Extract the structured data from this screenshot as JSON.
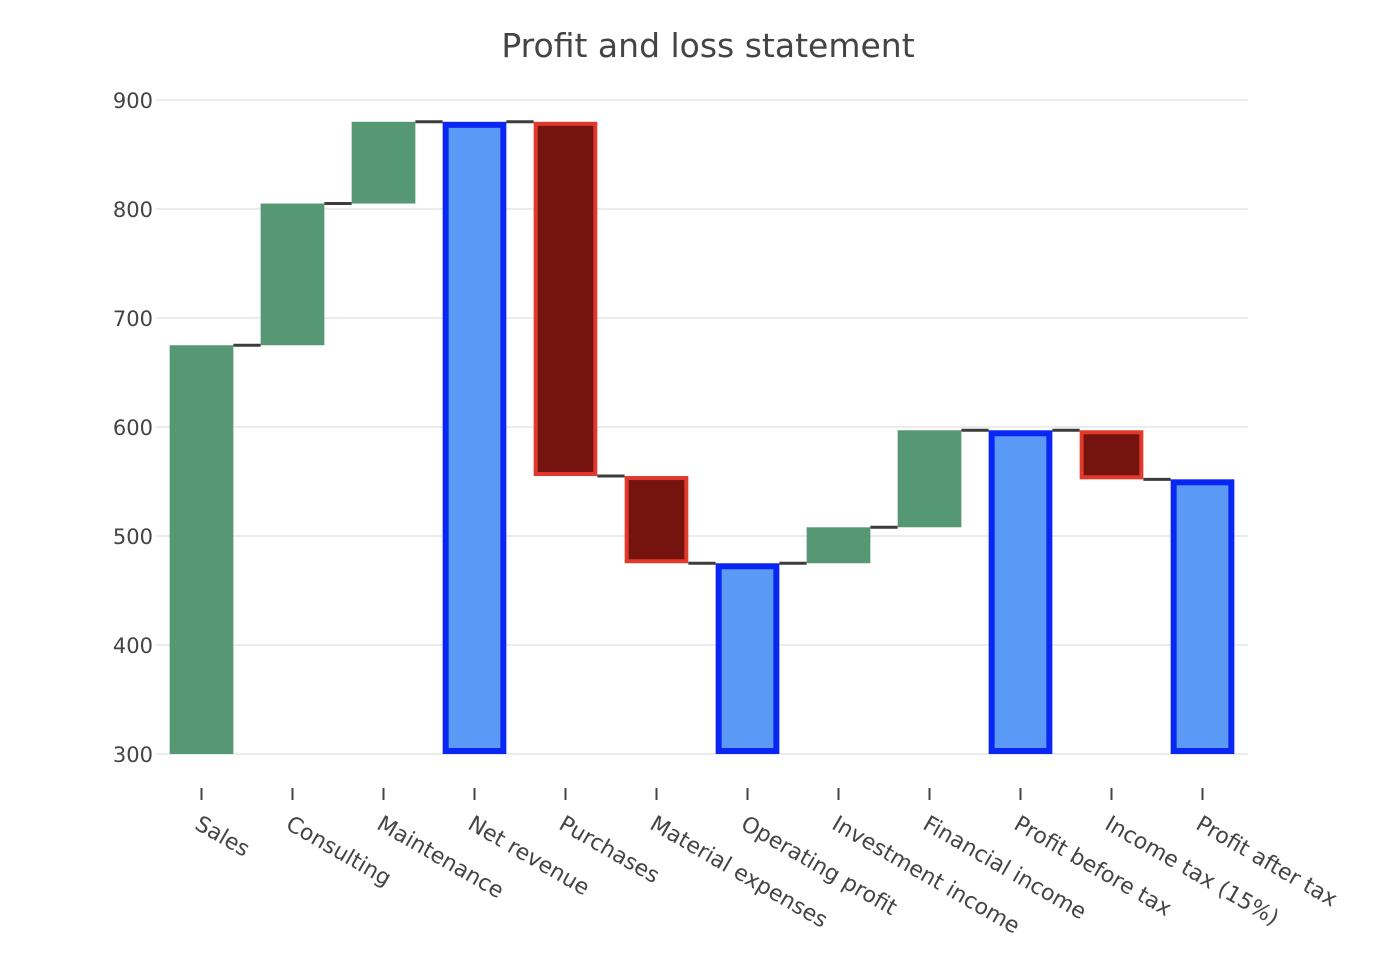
{
  "chart_data": {
    "type": "bar",
    "title": "Profit and loss statement",
    "xlabel": "",
    "ylabel": "",
    "ylim": [
      300,
      900
    ],
    "yticks": [
      300,
      400,
      500,
      600,
      700,
      800,
      900
    ],
    "grid": true,
    "legend": "none",
    "categories": [
      "Sales",
      "Consulting",
      "Maintenance",
      "Net revenue",
      "Purchases",
      "Material expenses",
      "Operating profit",
      "Investment income",
      "Financial income",
      "Profit before tax",
      "Income tax (15%)",
      "Profit after tax"
    ],
    "measures": [
      "relative",
      "relative",
      "relative",
      "total",
      "relative",
      "relative",
      "total",
      "relative",
      "relative",
      "total",
      "relative",
      "total"
    ],
    "bars": [
      {
        "label": "Sales",
        "base": 300,
        "end": 675,
        "kind": "increase"
      },
      {
        "label": "Consulting",
        "base": 675,
        "end": 805,
        "kind": "increase"
      },
      {
        "label": "Maintenance",
        "base": 805,
        "end": 880,
        "kind": "increase"
      },
      {
        "label": "Net revenue",
        "base": 300,
        "end": 880,
        "kind": "total"
      },
      {
        "label": "Purchases",
        "base": 880,
        "end": 555,
        "kind": "decrease"
      },
      {
        "label": "Material expenses",
        "base": 555,
        "end": 475,
        "kind": "decrease"
      },
      {
        "label": "Operating profit",
        "base": 300,
        "end": 475,
        "kind": "total"
      },
      {
        "label": "Investment income",
        "base": 475,
        "end": 508,
        "kind": "increase"
      },
      {
        "label": "Financial income",
        "base": 508,
        "end": 597,
        "kind": "increase"
      },
      {
        "label": "Profit before tax",
        "base": 300,
        "end": 597,
        "kind": "total"
      },
      {
        "label": "Income tax (15%)",
        "base": 597,
        "end": 552,
        "kind": "decrease"
      },
      {
        "label": "Profit after tax",
        "base": 300,
        "end": 552,
        "kind": "total"
      }
    ],
    "colors": {
      "increase_fill": "#569873",
      "decrease_fill": "#75140f",
      "decrease_line": "#e03a2c",
      "total_fill": "#5b99f7",
      "total_line": "#0a26f3",
      "connector": "#3c3c3c",
      "grid": "#e6e6e6",
      "text": "#444444"
    }
  }
}
